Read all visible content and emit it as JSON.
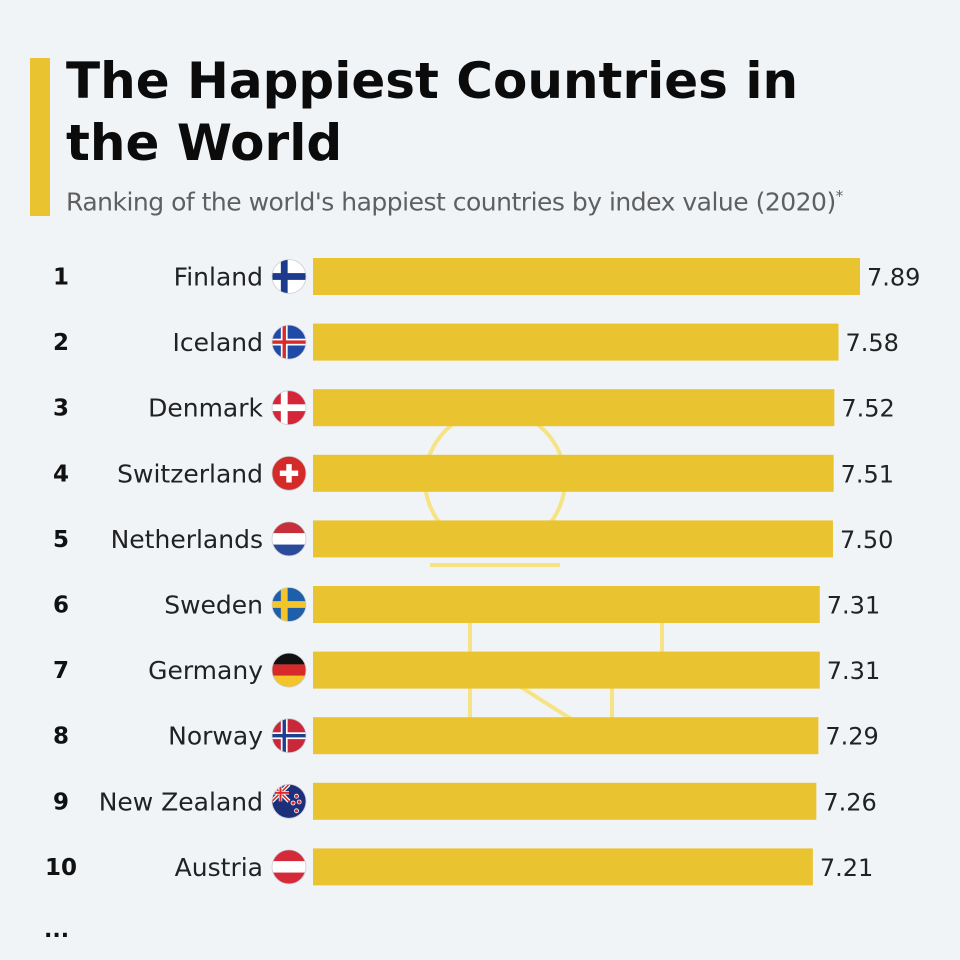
{
  "header": {
    "title": "The Happiest Countries in the World",
    "subtitle": "Ranking of the world's happiest countries by index value (2020)",
    "subtitle_marker": "*"
  },
  "footer": {
    "ellipsis": "..."
  },
  "colors": {
    "bar": "#e9c430",
    "accent": "#e9c430",
    "background": "#f1f4f7"
  },
  "chart_data": {
    "type": "bar",
    "orientation": "horizontal",
    "title": "The Happiest Countries in the World",
    "subtitle": "Ranking of the world's happiest countries by index value (2020)",
    "xlim": [
      0,
      7.89
    ],
    "grid": false,
    "ranks": [
      "1",
      "2",
      "3",
      "4",
      "5",
      "6",
      "7",
      "8",
      "9",
      "10"
    ],
    "categories": [
      "Finland",
      "Iceland",
      "Denmark",
      "Switzerland",
      "Netherlands",
      "Sweden",
      "Germany",
      "Norway",
      "New Zealand",
      "Austria"
    ],
    "values": [
      7.89,
      7.58,
      7.52,
      7.51,
      7.5,
      7.31,
      7.31,
      7.29,
      7.26,
      7.21
    ],
    "value_labels": [
      "7.89",
      "7.58",
      "7.52",
      "7.51",
      "7.50",
      "7.31",
      "7.31",
      "7.29",
      "7.26",
      "7.21"
    ],
    "flags": [
      "finland-flag-icon",
      "iceland-flag-icon",
      "denmark-flag-icon",
      "switzerland-flag-icon",
      "netherlands-flag-icon",
      "sweden-flag-icon",
      "germany-flag-icon",
      "norway-flag-icon",
      "new-zealand-flag-icon",
      "austria-flag-icon"
    ]
  }
}
